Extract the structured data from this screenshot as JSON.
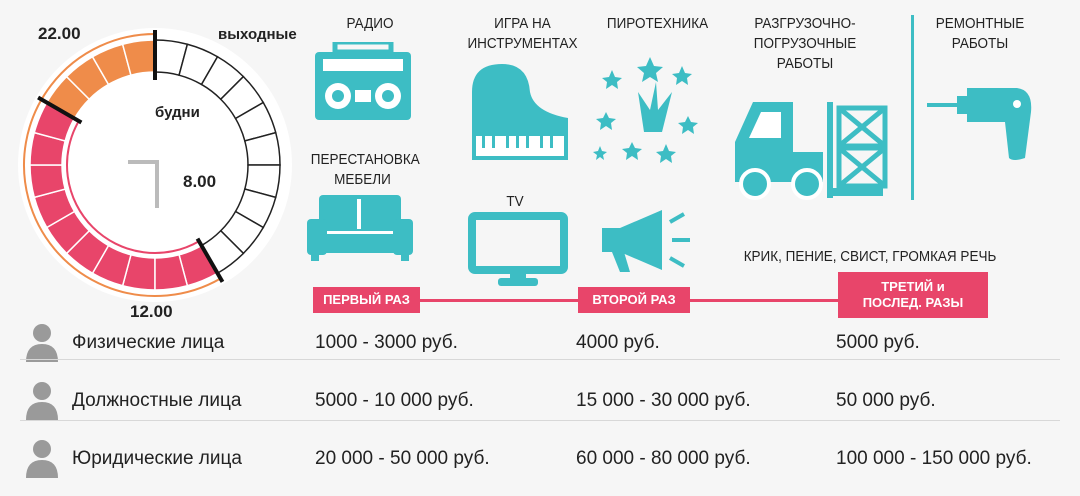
{
  "clock": {
    "label_22": "22.00",
    "label_8": "8.00",
    "label_12": "12.00",
    "weekend_label": "выходные",
    "weekday_label": "будни",
    "hours_total": 24,
    "red_range": [
      22,
      8
    ],
    "orange_range": [
      8,
      12
    ],
    "weekday_range": [
      22,
      8
    ],
    "weekend_range": [
      22,
      12
    ],
    "colors": {
      "red": "#e8456a",
      "orange": "#ef8c4a"
    }
  },
  "activities": {
    "radio": "РАДИО",
    "piano": "ИГРА НА ИНСТРУМЕНТАХ",
    "fireworks": "ПИРОТЕХНИКА",
    "loading": "РАЗГРУЗОЧНО-ПОГРУЗОЧНЫЕ РАБОТЫ",
    "repair": "РЕМОНТНЫЕ РАБОТЫ",
    "furniture": "ПЕРЕСТАНОВКА МЕБЕЛИ",
    "tv": "TV",
    "shouting": "КРИК, ПЕНИЕ, СВИСТ, ГРОМКАЯ РЕЧЬ"
  },
  "timeline": {
    "first": "ПЕРВЫЙ РАЗ",
    "second": "ВТОРОЙ РАЗ",
    "third": "ТРЕТИЙ и ПОСЛЕД. РАЗЫ"
  },
  "fines": [
    {
      "who": "Физические лица",
      "first": "1000 - 3000 руб.",
      "second": "4000 руб.",
      "third": "5000 руб."
    },
    {
      "who": "Должностные лица",
      "first": "5000 - 10 000 руб.",
      "second": "15 000 - 30 000 руб.",
      "third": "50 000 руб."
    },
    {
      "who": "Юридические лица",
      "first": "20 000 - 50 000 руб.",
      "second": "60 000 - 80 000 руб.",
      "third": "100 000 - 150 000 руб."
    }
  ],
  "accent": "#3dbdc4"
}
